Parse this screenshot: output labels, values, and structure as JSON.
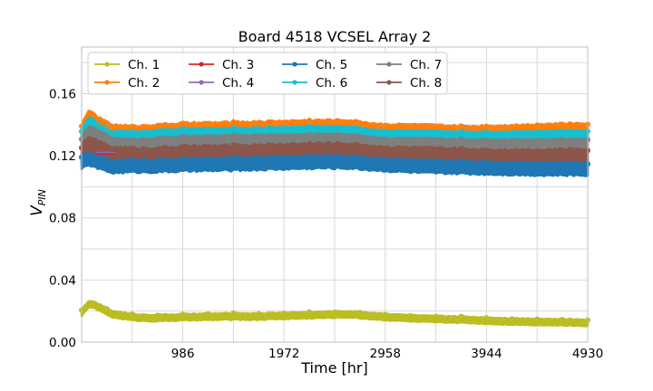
{
  "chart_data": {
    "type": "line",
    "title": "Board 4518 VCSEL Array 2",
    "xlabel": "Time [hr]",
    "ylabel_main": "V",
    "ylabel_sub": "PIN",
    "xlim": [
      0,
      4930
    ],
    "ylim": [
      0,
      0.19
    ],
    "xticks": [
      986,
      1972,
      2958,
      3944,
      4930
    ],
    "xtick_labels": [
      "986",
      "1972",
      "2958",
      "3944",
      "4930"
    ],
    "yticks": [
      0.0,
      0.02,
      0.04,
      0.06,
      0.08,
      0.1,
      0.12,
      0.14,
      0.16,
      0.18
    ],
    "ytick_labels": [
      "0.00",
      "",
      "0.04",
      "",
      "0.08",
      "",
      "0.12",
      "",
      "0.16",
      ""
    ],
    "grid": true,
    "legend_position": "upper-left",
    "series": [
      {
        "name": "Ch. 1",
        "color": "#bcbd22",
        "low": 0.0125,
        "high": 0.0165,
        "x": [
          0,
          80,
          150,
          300,
          500,
          700,
          986,
          1400,
          1700,
          2000,
          2300,
          2600,
          2900,
          3300,
          3700,
          4100,
          4500,
          4930
        ],
        "y": [
          0.019,
          0.025,
          0.023,
          0.018,
          0.016,
          0.0155,
          0.016,
          0.0165,
          0.0165,
          0.017,
          0.0175,
          0.018,
          0.0165,
          0.015,
          0.0145,
          0.0135,
          0.013,
          0.0125
        ]
      },
      {
        "name": "Ch. 2",
        "color": "#ff7f0e",
        "low": 0.132,
        "high": 0.14,
        "x": [
          0,
          80,
          150,
          300,
          500,
          700,
          986,
          1400,
          1700,
          2000,
          2300,
          2600,
          2900,
          3300,
          3700,
          4100,
          4500,
          4930
        ],
        "y": [
          0.136,
          0.146,
          0.141,
          0.136,
          0.135,
          0.136,
          0.137,
          0.1375,
          0.138,
          0.1385,
          0.139,
          0.139,
          0.1365,
          0.136,
          0.135,
          0.1355,
          0.1365,
          0.137
        ]
      },
      {
        "name": "Ch. 3",
        "color": "#d62728",
        "low": 0.118,
        "high": 0.126,
        "x": [
          0,
          986,
          1972,
          2958,
          3944,
          4930
        ],
        "y": [
          0.121,
          0.122,
          0.122,
          0.121,
          0.1205,
          0.1205
        ]
      },
      {
        "name": "Ch. 4",
        "color": "#9467bd",
        "low": 0.118,
        "high": 0.126,
        "x": [
          0,
          986,
          1972,
          2958,
          3944,
          4930
        ],
        "y": [
          0.122,
          0.1225,
          0.123,
          0.122,
          0.121,
          0.121
        ]
      },
      {
        "name": "Ch. 5",
        "color": "#1f77b4",
        "low": 0.11,
        "high": 0.118,
        "x": [
          0,
          80,
          150,
          300,
          500,
          700,
          986,
          1400,
          1700,
          2000,
          2300,
          2600,
          2900,
          3300,
          3700,
          4100,
          4500,
          4930
        ],
        "y": [
          0.116,
          0.118,
          0.116,
          0.113,
          0.1135,
          0.1135,
          0.114,
          0.1145,
          0.115,
          0.1155,
          0.116,
          0.116,
          0.1145,
          0.113,
          0.1125,
          0.112,
          0.1115,
          0.1115
        ]
      },
      {
        "name": "Ch. 6",
        "color": "#17becf",
        "low": 0.129,
        "high": 0.136,
        "x": [
          0,
          80,
          150,
          300,
          500,
          700,
          986,
          1400,
          1700,
          2000,
          2300,
          2600,
          2900,
          3300,
          3700,
          4100,
          4500,
          4930
        ],
        "y": [
          0.133,
          0.142,
          0.138,
          0.133,
          0.132,
          0.133,
          0.134,
          0.134,
          0.1345,
          0.135,
          0.1355,
          0.1355,
          0.133,
          0.1325,
          0.132,
          0.132,
          0.1325,
          0.133
        ]
      },
      {
        "name": "Ch. 7",
        "color": "#7f7f7f",
        "low": 0.124,
        "high": 0.131,
        "x": [
          0,
          80,
          150,
          300,
          500,
          700,
          986,
          1400,
          1700,
          2000,
          2300,
          2600,
          2900,
          3300,
          3700,
          4100,
          4500,
          4930
        ],
        "y": [
          0.128,
          0.136,
          0.133,
          0.128,
          0.127,
          0.128,
          0.129,
          0.1295,
          0.13,
          0.13,
          0.1305,
          0.1305,
          0.128,
          0.1275,
          0.127,
          0.127,
          0.127,
          0.1275
        ]
      },
      {
        "name": "Ch. 8",
        "color": "#8c564b",
        "low": 0.115,
        "high": 0.126,
        "x": [
          0,
          80,
          150,
          300,
          500,
          700,
          986,
          1400,
          1700,
          2000,
          2300,
          2600,
          2900,
          3300,
          3700,
          4100,
          4500,
          4930
        ],
        "y": [
          0.121,
          0.127,
          0.124,
          0.12,
          0.1195,
          0.1195,
          0.1205,
          0.121,
          0.1215,
          0.122,
          0.1225,
          0.1225,
          0.1205,
          0.1195,
          0.119,
          0.1185,
          0.1185,
          0.119
        ]
      }
    ],
    "legend_order": [
      "Ch. 1",
      "Ch. 3",
      "Ch. 5",
      "Ch. 7",
      "Ch. 2",
      "Ch. 4",
      "Ch. 6",
      "Ch. 8"
    ],
    "draw_order": [
      "Ch. 2",
      "Ch. 6",
      "Ch. 7",
      "Ch. 8",
      "Ch. 5",
      "Ch. 1"
    ]
  }
}
